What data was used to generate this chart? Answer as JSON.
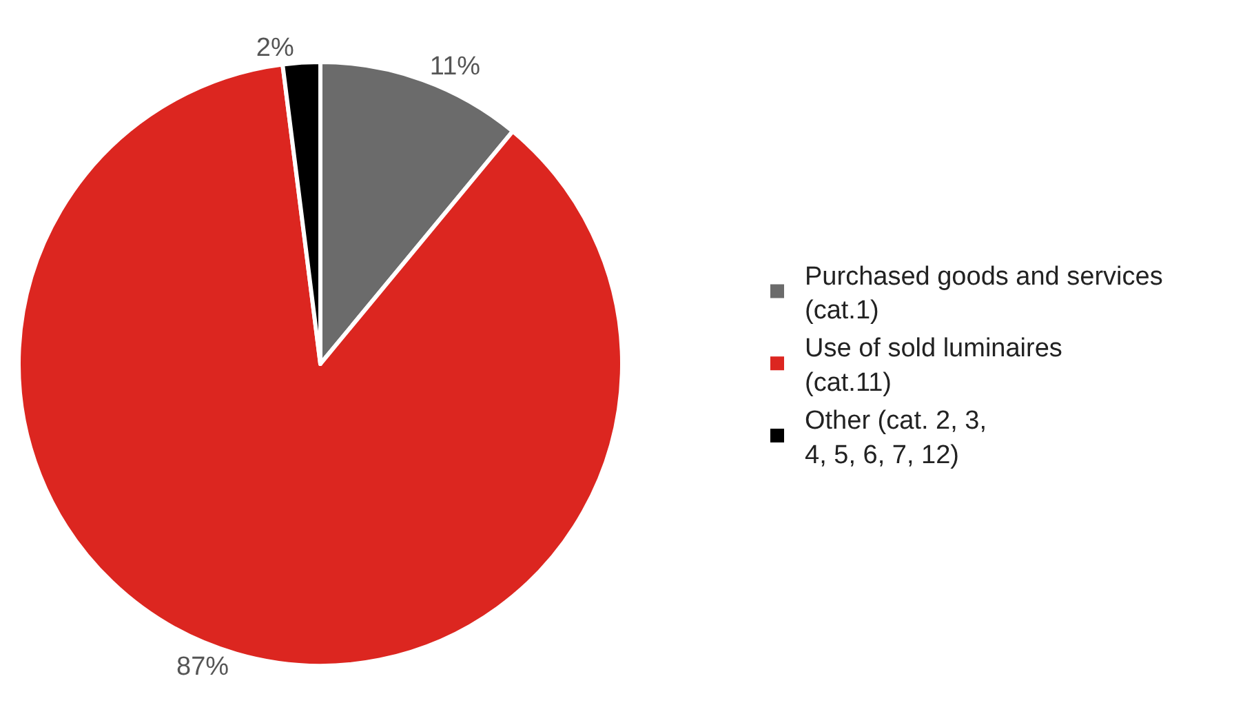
{
  "chart_data": {
    "type": "pie",
    "categories": [
      "Purchased goods and services\n(cat.1)",
      "Use of sold luminaires\n(cat.11)",
      "Other (cat. 2, 3,\n4, 5, 6, 7, 12)"
    ],
    "values": [
      11,
      87,
      2
    ],
    "colors": [
      "#6b6b6b",
      "#dc2620",
      "#000000"
    ],
    "value_labels": [
      "11%",
      "87%",
      "2%"
    ],
    "legend": "right"
  }
}
